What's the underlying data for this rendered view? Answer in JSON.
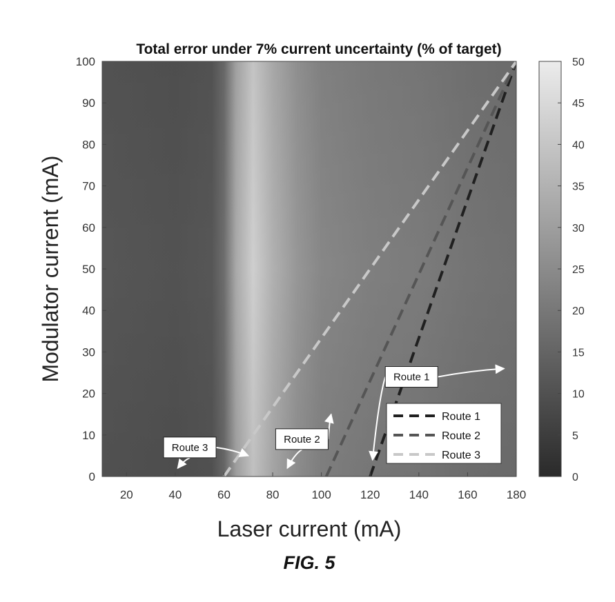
{
  "chart_data": {
    "type": "heatmap",
    "title": "Total error under 7% current uncertainty (% of target)",
    "xlabel": "Laser current (mA)",
    "ylabel": "Modulator current (mA)",
    "xlim": [
      10,
      180
    ],
    "ylim": [
      0,
      100
    ],
    "xticks": [
      "20",
      "40",
      "60",
      "80",
      "100",
      "120",
      "140",
      "160",
      "180"
    ],
    "yticks": [
      "0",
      "10",
      "20",
      "30",
      "40",
      "50",
      "60",
      "70",
      "80",
      "90",
      "100"
    ],
    "colorbar": {
      "range": [
        0,
        50
      ],
      "ticks": [
        "0",
        "5",
        "10",
        "15",
        "20",
        "25",
        "30",
        "35",
        "40",
        "45",
        "50"
      ]
    },
    "error_profile_by_laser_current": {
      "x": [
        10,
        40,
        55,
        60,
        65,
        72,
        80,
        90,
        100,
        110,
        120,
        140,
        160,
        180
      ],
      "error": [
        12,
        11,
        12,
        18,
        34,
        44,
        36,
        29,
        25,
        24,
        23,
        22,
        20,
        19
      ]
    },
    "legend": {
      "position": "lower-right",
      "entries": [
        {
          "name": "Route 1",
          "color": "#202020"
        },
        {
          "name": "Route 2",
          "color": "#555555"
        },
        {
          "name": "Route 3",
          "color": "#c8c8c8"
        }
      ]
    },
    "routes": [
      {
        "name": "Route 1",
        "color": "#202020",
        "x": [
          120,
          180
        ],
        "y": [
          0,
          100
        ]
      },
      {
        "name": "Route 2",
        "color": "#555555",
        "x": [
          102,
          180
        ],
        "y": [
          0,
          100
        ]
      },
      {
        "name": "Route 3",
        "color": "#c8c8c8",
        "x": [
          60,
          180
        ],
        "y": [
          0,
          100
        ]
      }
    ],
    "annotations": [
      {
        "text": "Route 1",
        "box": [
          137,
          24
        ],
        "arrows": [
          [
            175,
            26
          ],
          [
            121,
            4
          ]
        ]
      },
      {
        "text": "Route 2",
        "box": [
          92,
          9
        ],
        "arrows": [
          [
            104,
            15
          ],
          [
            86,
            2
          ]
        ]
      },
      {
        "text": "Route 3",
        "box": [
          46,
          7
        ],
        "arrows": [
          [
            70,
            5
          ],
          [
            41,
            2
          ]
        ]
      }
    ]
  },
  "caption": "FIG. 5"
}
